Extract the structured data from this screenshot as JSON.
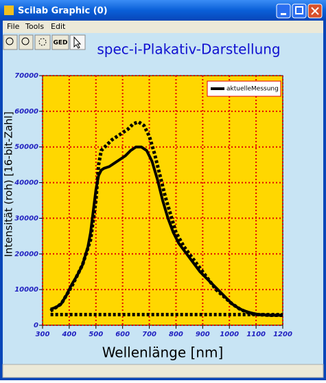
{
  "window": {
    "title": "Scilab Graphic (0)",
    "menu": [
      "File",
      "Tools",
      "Edit"
    ],
    "toolbar": [
      "GED"
    ]
  },
  "chart_data": {
    "type": "line",
    "title": "spec-i-Plakativ-Darstellung",
    "xlabel": "Wellenlänge [nm]",
    "ylabel": "Intensität (roh) [16-bit-Zahl]",
    "xlim": [
      300,
      1200
    ],
    "xticks": [
      300,
      400,
      500,
      600,
      700,
      800,
      900,
      1000,
      1100,
      1200
    ],
    "ylim": [
      0,
      70000
    ],
    "yticks": [
      0,
      10000,
      20000,
      30000,
      40000,
      50000,
      60000,
      70000
    ],
    "grid": true,
    "legend": "upper right",
    "background": "#ffd700",
    "grid_color": "#e00000",
    "series": [
      {
        "name": "aktuelleMessung",
        "color": "#000000",
        "linestyle": "solid",
        "x": [
          330,
          350,
          370,
          390,
          410,
          430,
          450,
          470,
          480,
          490,
          500,
          510,
          520,
          530,
          550,
          570,
          590,
          610,
          630,
          650,
          670,
          690,
          710,
          730,
          750,
          770,
          790,
          810,
          830,
          850,
          870,
          890,
          910,
          930,
          950,
          970,
          990,
          1010,
          1030,
          1050,
          1070,
          1090,
          1110,
          1150,
          1200
        ],
        "values": [
          4500,
          5000,
          6000,
          8500,
          11500,
          14000,
          17000,
          22000,
          26000,
          32000,
          38000,
          42000,
          43500,
          44000,
          44500,
          45500,
          46500,
          47500,
          49000,
          50000,
          50000,
          49000,
          46000,
          41000,
          35000,
          30000,
          26000,
          23000,
          21000,
          19000,
          17000,
          15000,
          13500,
          12000,
          10500,
          9000,
          7500,
          6000,
          5000,
          4200,
          3700,
          3300,
          3000,
          2800,
          2800
        ]
      },
      {
        "color": "#000000",
        "linestyle": "dotted",
        "x": [
          330,
          370,
          410,
          450,
          480,
          500,
          510,
          520,
          540,
          560,
          580,
          600,
          620,
          640,
          660,
          680,
          700,
          720,
          740,
          760,
          780,
          800,
          830,
          860,
          890,
          920,
          950,
          980,
          1010,
          1040,
          1070,
          1100,
          1150,
          1200
        ],
        "values": [
          4000,
          6000,
          11000,
          17000,
          24000,
          35000,
          45000,
          49000,
          50500,
          52000,
          53000,
          54000,
          55000,
          56500,
          57000,
          56000,
          53000,
          48000,
          42000,
          36000,
          31000,
          26000,
          22000,
          19000,
          16000,
          13000,
          10000,
          8000,
          6000,
          4500,
          3500,
          3000,
          2800,
          2800
        ]
      },
      {
        "color": "#000000",
        "linestyle": "dotted",
        "x": [
          330,
          1200
        ],
        "values": [
          3000,
          3000
        ]
      }
    ]
  }
}
